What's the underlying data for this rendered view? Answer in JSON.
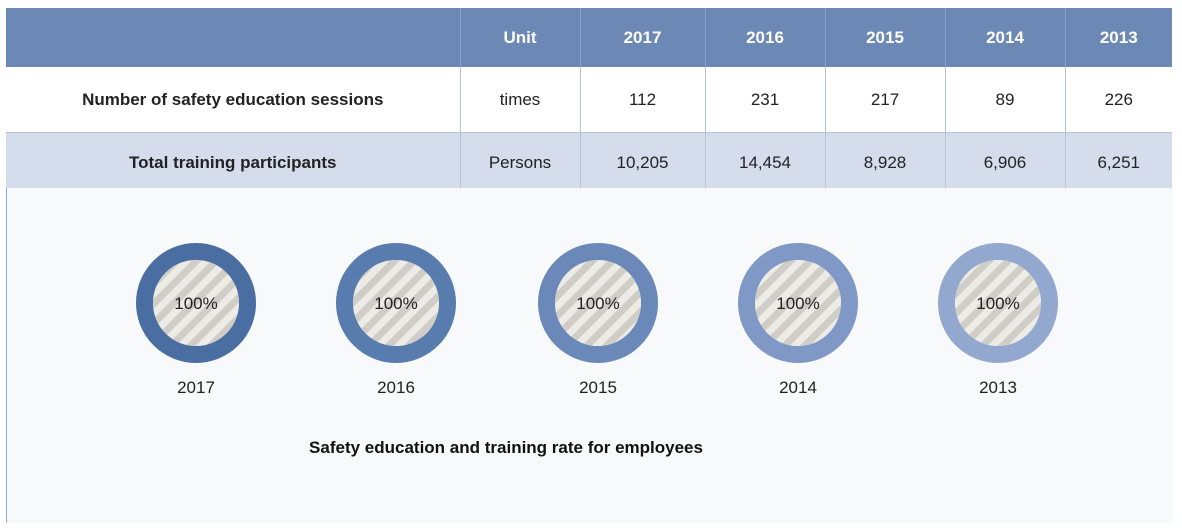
{
  "table": {
    "header": [
      "Unit",
      "2017",
      "2016",
      "2015",
      "2014",
      "2013"
    ],
    "rows": [
      {
        "label": "Number of safety education sessions",
        "unit": "times",
        "values": [
          "112",
          "231",
          "217",
          "89",
          "226"
        ]
      },
      {
        "label": "Total training participants",
        "unit": "Persons",
        "values": [
          "10,205",
          "14,454",
          "8,928",
          "6,906",
          "6,251"
        ]
      }
    ]
  },
  "rates": {
    "caption": "Safety education and training rate for employees",
    "items": [
      {
        "year": "2017",
        "value": 100,
        "label": "100%",
        "color": "#4a6ea2"
      },
      {
        "year": "2016",
        "value": 100,
        "label": "100%",
        "color": "#587cae"
      },
      {
        "year": "2015",
        "value": 100,
        "label": "100%",
        "color": "#6a89b9"
      },
      {
        "year": "2014",
        "value": 100,
        "label": "100%",
        "color": "#7f98c5"
      },
      {
        "year": "2013",
        "value": 100,
        "label": "100%",
        "color": "#93a8ce"
      }
    ]
  }
}
